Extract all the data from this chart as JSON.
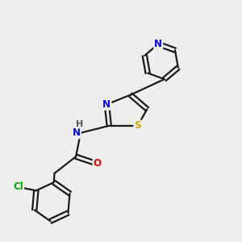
{
  "bg_color": "#eeeeee",
  "bond_color": "#1a1a1a",
  "bond_width": 1.6,
  "atom_colors": {
    "N": "#0000ee",
    "S": "#ccaa00",
    "O": "#ee0000",
    "Cl": "#00aa00",
    "H": "#555555",
    "C": "#1a1a1a"
  },
  "font_size": 8.5,
  "fig_size": [
    3.0,
    3.0
  ],
  "dpi": 100
}
